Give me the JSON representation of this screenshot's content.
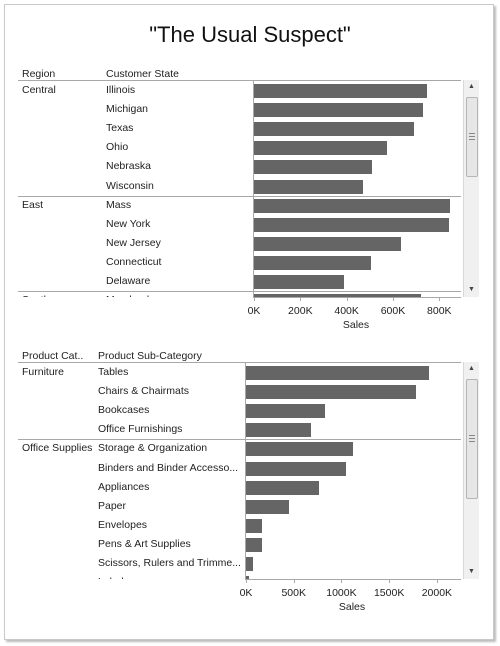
{
  "title": "\"The Usual Suspect\"",
  "chart1": {
    "headers": {
      "col1": "Region",
      "col2": "Customer State"
    },
    "axis_title": "Sales",
    "ticks": [
      "0K",
      "200K",
      "400K",
      "600K",
      "800K"
    ],
    "tick_values": [
      0,
      200000,
      400000,
      600000,
      800000
    ],
    "xmax": 880000,
    "groups": [
      {
        "name": "Central",
        "rows": [
          {
            "label": "Illinois",
            "value": 745000
          },
          {
            "label": "Michigan",
            "value": 730000
          },
          {
            "label": "Texas",
            "value": 690000
          },
          {
            "label": "Ohio",
            "value": 575000
          },
          {
            "label": "Nebraska",
            "value": 510000
          },
          {
            "label": "Wisconsin",
            "value": 470000
          }
        ]
      },
      {
        "name": "East",
        "rows": [
          {
            "label": "Mass",
            "value": 845000
          },
          {
            "label": "New York",
            "value": 840000
          },
          {
            "label": "New Jersey",
            "value": 635000
          },
          {
            "label": "Connecticut",
            "value": 505000
          },
          {
            "label": "Delaware",
            "value": 390000
          }
        ]
      },
      {
        "name": "South",
        "rows": [
          {
            "label": "Maryland",
            "value": 720000
          }
        ]
      }
    ]
  },
  "chart2": {
    "headers": {
      "col1": "Product Cat..",
      "col2": "Product Sub-Category"
    },
    "axis_title": "Sales",
    "ticks": [
      "0K",
      "500K",
      "1000K",
      "1500K",
      "2000K"
    ],
    "tick_values": [
      0,
      500000,
      1000000,
      1500000,
      2000000
    ],
    "xmax": 2150000,
    "groups": [
      {
        "name": "Furniture",
        "rows": [
          {
            "label": "Tables",
            "value": 1920000
          },
          {
            "label": "Chairs & Chairmats",
            "value": 1780000
          },
          {
            "label": "Bookcases",
            "value": 830000
          },
          {
            "label": "Office Furnishings",
            "value": 680000
          }
        ]
      },
      {
        "name": "Office Supplies",
        "rows": [
          {
            "label": "Storage & Organization",
            "value": 1120000
          },
          {
            "label": "Binders and Binder Accesso...",
            "value": 1050000
          },
          {
            "label": "Appliances",
            "value": 760000
          },
          {
            "label": "Paper",
            "value": 450000
          },
          {
            "label": "Envelopes",
            "value": 170000
          },
          {
            "label": "Pens & Art Supplies",
            "value": 170000
          },
          {
            "label": "Scissors, Rulers and Trimme...",
            "value": 75000
          },
          {
            "label": "Labels",
            "value": 30000
          }
        ]
      }
    ]
  },
  "chart_data": [
    {
      "type": "bar",
      "title": "\"The Usual Suspect\"",
      "xlabel": "Sales",
      "ylabel": "Customer State",
      "categories": [
        "Illinois",
        "Michigan",
        "Texas",
        "Ohio",
        "Nebraska",
        "Wisconsin",
        "Mass",
        "New York",
        "New Jersey",
        "Connecticut",
        "Delaware",
        "Maryland"
      ],
      "values": [
        745000,
        730000,
        690000,
        575000,
        510000,
        470000,
        845000,
        840000,
        635000,
        505000,
        390000,
        720000
      ],
      "xlim": [
        0,
        880000
      ]
    },
    {
      "type": "bar",
      "xlabel": "Sales",
      "ylabel": "Product Sub-Category",
      "categories": [
        "Tables",
        "Chairs & Chairmats",
        "Bookcases",
        "Office Furnishings",
        "Storage & Organization",
        "Binders and Binder Accesso...",
        "Appliances",
        "Paper",
        "Envelopes",
        "Pens & Art Supplies",
        "Scissors, Rulers and Trimme...",
        "Labels"
      ],
      "values": [
        1920000,
        1780000,
        830000,
        680000,
        1120000,
        1050000,
        760000,
        450000,
        170000,
        170000,
        75000,
        30000
      ],
      "xlim": [
        0,
        2150000
      ]
    }
  ],
  "colors": {
    "bar": "#656565",
    "rule": "#a8a8a8"
  }
}
